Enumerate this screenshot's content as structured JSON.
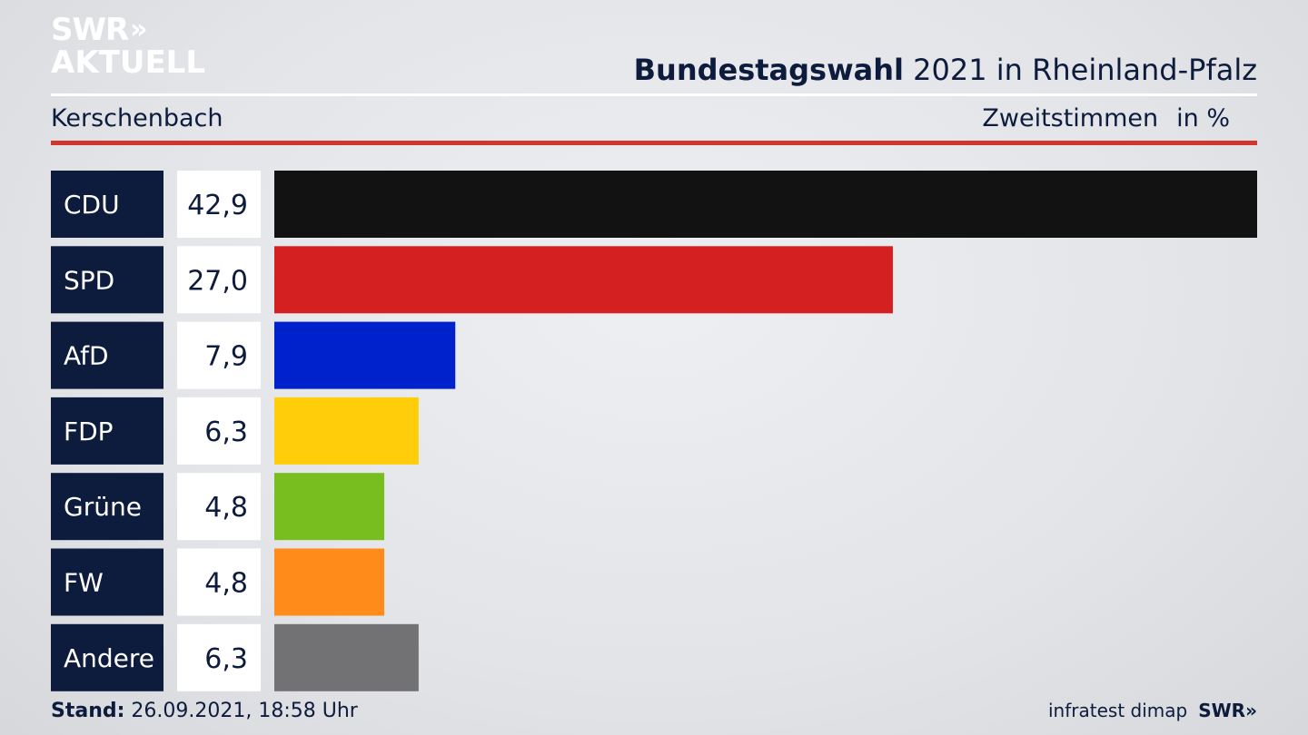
{
  "logo": {
    "line1": "SWR",
    "chevrons": "»",
    "line2": "AKTUELL"
  },
  "header": {
    "title_bold": "Bundestagswahl",
    "title_rest": "2021 in Rheinland-Pfalz",
    "location": "Kerschenbach",
    "measure": "Zweitstimmen",
    "unit": "in %"
  },
  "footer": {
    "stand_label": "Stand:",
    "stand_value": "26.09.2021, 18:58 Uhr",
    "source": "infratest dimap",
    "brand": "SWR»"
  },
  "colors": {
    "label_bg": "#0d1b3d",
    "rule_red": "#d0362e"
  },
  "chart_data": {
    "type": "bar",
    "orientation": "horizontal",
    "categories": [
      "CDU",
      "SPD",
      "AfD",
      "FDP",
      "Grüne",
      "FW",
      "Andere"
    ],
    "values": [
      42.9,
      27.0,
      7.9,
      6.3,
      4.8,
      4.8,
      6.3
    ],
    "value_labels": [
      "42,9",
      "27,0",
      "7,9",
      "6,3",
      "4,8",
      "4,8",
      "6,3"
    ],
    "colors": [
      "#121212",
      "#d42020",
      "#0022cc",
      "#ffcd0a",
      "#78be1e",
      "#ff8c1a",
      "#727274"
    ],
    "xlim": [
      0,
      42.9
    ]
  }
}
